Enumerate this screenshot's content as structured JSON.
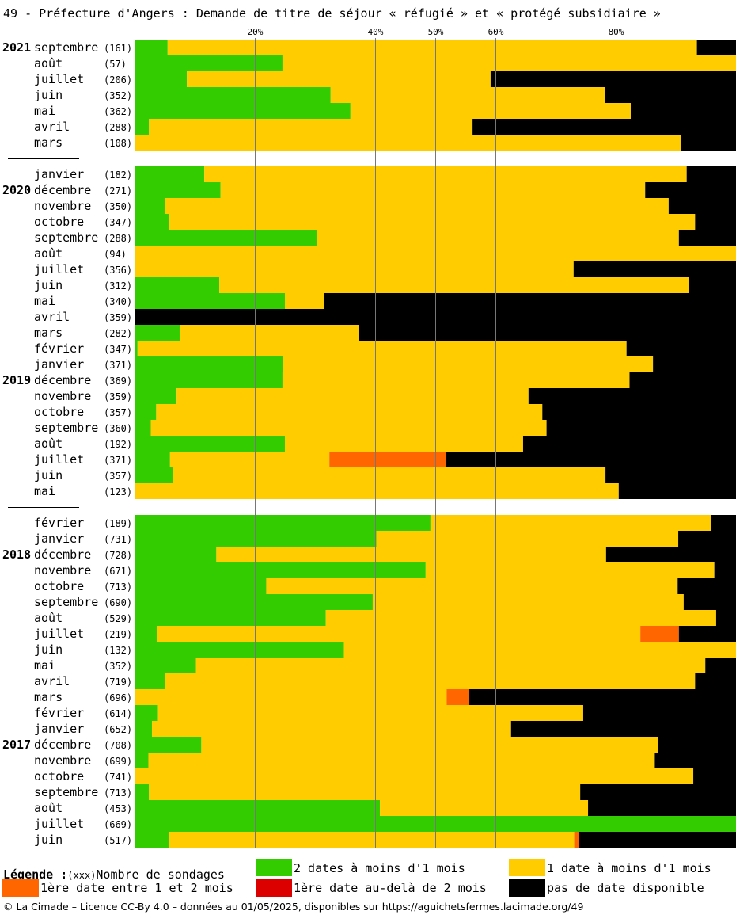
{
  "title": "49 - Préfecture d'Angers : Demande de titre de séjour « réfugié » et « protégé subsidiaire »",
  "legend": {
    "heading": "Légende :",
    "count_marker": "(xxx)",
    "count_label": "Nombre de sondages",
    "items": [
      {
        "key": "two_dates",
        "label": "2 dates à moins d'1 mois",
        "color": "#33cc00"
      },
      {
        "key": "one_date",
        "label": "1 date à moins d'1 mois",
        "color": "#ffcc00"
      },
      {
        "key": "first_1_2",
        "label": "1ère date entre 1 et 2 mois",
        "color": "#ff6600"
      },
      {
        "key": "first_over_2",
        "label": "1ère date au-delà de 2 mois",
        "color": "#dd0000"
      },
      {
        "key": "none",
        "label": "pas de date disponible",
        "color": "#000000"
      }
    ]
  },
  "footer": "© La Cimade – Licence CC-By 4.0 – données au 01/05/2025, disponibles sur https://aguichetsfermes.lacimade.org/49",
  "chart_data": {
    "type": "bar",
    "orientation": "horizontal",
    "stacked": true,
    "x_ticks": [
      20,
      40,
      50,
      60,
      80
    ],
    "x_tick_labels": [
      "20%",
      "40%",
      "50%",
      "60%",
      "80%"
    ],
    "xlim": [
      0,
      100
    ],
    "grid": true,
    "series_order": [
      "two_dates",
      "one_date",
      "first_1_2",
      "first_over_2",
      "none"
    ],
    "rows": [
      {
        "year": "2021",
        "month": "septembre",
        "count": "(161)",
        "values": [
          5.5,
          88.0,
          0,
          0,
          6.5
        ]
      },
      {
        "year": "",
        "month": "août",
        "count": "(57)",
        "values": [
          24.6,
          75.4,
          0,
          0,
          0
        ]
      },
      {
        "year": "",
        "month": "juillet",
        "count": "(206)",
        "values": [
          8.7,
          50.5,
          0,
          0,
          40.8
        ]
      },
      {
        "year": "",
        "month": "juin",
        "count": "(352)",
        "values": [
          32.6,
          45.6,
          0,
          0,
          21.8
        ]
      },
      {
        "year": "",
        "month": "mai",
        "count": "(362)",
        "values": [
          35.9,
          46.6,
          0,
          0,
          17.5
        ]
      },
      {
        "year": "",
        "month": "avril",
        "count": "(288)",
        "values": [
          2.4,
          53.8,
          0,
          0,
          43.8
        ]
      },
      {
        "year": "",
        "month": "mars",
        "count": "(108)",
        "values": [
          0,
          90.8,
          0,
          0,
          9.2
        ]
      },
      {
        "gap": true
      },
      {
        "year": "",
        "month": "janvier",
        "count": "(182)",
        "values": [
          11.6,
          80.2,
          0,
          0,
          8.2
        ]
      },
      {
        "year": "2020",
        "month": "décembre",
        "count": "(271)",
        "values": [
          14.3,
          70.6,
          0,
          0,
          15.1
        ]
      },
      {
        "year": "",
        "month": "novembre",
        "count": "(350)",
        "values": [
          5.1,
          83.7,
          0,
          0,
          11.2
        ]
      },
      {
        "year": "",
        "month": "octobre",
        "count": "(347)",
        "values": [
          5.8,
          87.4,
          0,
          0,
          6.8
        ]
      },
      {
        "year": "",
        "month": "septembre",
        "count": "(288)",
        "values": [
          30.3,
          60.2,
          0,
          0,
          9.5
        ]
      },
      {
        "year": "",
        "month": "août",
        "count": "(94)",
        "values": [
          0,
          100,
          0,
          0,
          0
        ]
      },
      {
        "year": "",
        "month": "juillet",
        "count": "(356)",
        "values": [
          0,
          73.0,
          0,
          0,
          27.0
        ]
      },
      {
        "year": "",
        "month": "juin",
        "count": "(312)",
        "values": [
          14.1,
          78.1,
          0,
          0,
          7.8
        ]
      },
      {
        "year": "",
        "month": "mai",
        "count": "(340)",
        "values": [
          25.0,
          6.5,
          0,
          0,
          68.5
        ]
      },
      {
        "year": "",
        "month": "avril",
        "count": "(359)",
        "values": [
          0,
          0,
          0,
          0,
          100
        ]
      },
      {
        "year": "",
        "month": "mars",
        "count": "(282)",
        "values": [
          7.5,
          29.8,
          0,
          0,
          62.7
        ]
      },
      {
        "year": "",
        "month": "février",
        "count": "(347)",
        "values": [
          0.5,
          81.3,
          0,
          0,
          18.2
        ]
      },
      {
        "year": "",
        "month": "janvier",
        "count": "(371)",
        "values": [
          24.7,
          61.5,
          0,
          0,
          13.8
        ]
      },
      {
        "year": "2019",
        "month": "décembre",
        "count": "(369)",
        "values": [
          24.6,
          57.7,
          0,
          0,
          17.7
        ]
      },
      {
        "year": "",
        "month": "novembre",
        "count": "(359)",
        "values": [
          7.0,
          58.5,
          0,
          0,
          34.5
        ]
      },
      {
        "year": "",
        "month": "octobre",
        "count": "(357)",
        "values": [
          3.6,
          64.2,
          0,
          0,
          32.2
        ]
      },
      {
        "year": "",
        "month": "septembre",
        "count": "(360)",
        "values": [
          2.7,
          65.8,
          0,
          0,
          31.5
        ]
      },
      {
        "year": "",
        "month": "août",
        "count": "(192)",
        "values": [
          25.0,
          39.6,
          0,
          0,
          35.4
        ]
      },
      {
        "year": "",
        "month": "juillet",
        "count": "(371)",
        "values": [
          5.9,
          26.5,
          19.4,
          0,
          48.2
        ]
      },
      {
        "year": "",
        "month": "juin",
        "count": "(357)",
        "values": [
          6.4,
          71.9,
          0,
          0,
          21.7
        ]
      },
      {
        "year": "",
        "month": "mai",
        "count": "(123)",
        "values": [
          0,
          80.5,
          0,
          0,
          19.5
        ]
      },
      {
        "gap": true
      },
      {
        "year": "",
        "month": "février",
        "count": "(189)",
        "values": [
          49.2,
          46.6,
          0,
          0,
          4.2
        ]
      },
      {
        "year": "",
        "month": "janvier",
        "count": "(731)",
        "values": [
          40.2,
          50.2,
          0,
          0,
          9.6
        ]
      },
      {
        "year": "2018",
        "month": "décembre",
        "count": "(728)",
        "values": [
          13.6,
          64.8,
          0,
          0,
          21.6
        ]
      },
      {
        "year": "",
        "month": "novembre",
        "count": "(671)",
        "values": [
          48.4,
          48.0,
          0,
          0,
          3.6
        ]
      },
      {
        "year": "",
        "month": "octobre",
        "count": "(713)",
        "values": [
          21.9,
          68.4,
          0,
          0,
          9.7
        ]
      },
      {
        "year": "",
        "month": "septembre",
        "count": "(690)",
        "values": [
          39.6,
          51.7,
          0,
          0,
          8.7
        ]
      },
      {
        "year": "",
        "month": "août",
        "count": "(529)",
        "values": [
          31.8,
          64.9,
          0,
          0,
          3.3
        ]
      },
      {
        "year": "",
        "month": "juillet",
        "count": "(219)",
        "values": [
          3.7,
          80.4,
          6.4,
          0,
          9.5
        ]
      },
      {
        "year": "",
        "month": "juin",
        "count": "(132)",
        "values": [
          34.8,
          65.2,
          0,
          0,
          0
        ]
      },
      {
        "year": "",
        "month": "mai",
        "count": "(352)",
        "values": [
          10.2,
          84.7,
          0,
          0,
          5.1
        ]
      },
      {
        "year": "",
        "month": "avril",
        "count": "(719)",
        "values": [
          5.0,
          88.2,
          0,
          0,
          6.8
        ]
      },
      {
        "year": "",
        "month": "mars",
        "count": "(696)",
        "values": [
          0,
          51.9,
          3.7,
          0,
          44.4
        ]
      },
      {
        "year": "",
        "month": "février",
        "count": "(614)",
        "values": [
          3.9,
          70.7,
          0,
          0,
          25.4
        ]
      },
      {
        "year": "",
        "month": "janvier",
        "count": "(652)",
        "values": [
          2.9,
          59.7,
          0,
          0,
          37.4
        ]
      },
      {
        "year": "2017",
        "month": "décembre",
        "count": "(708)",
        "values": [
          11.1,
          76.0,
          0,
          0,
          12.9
        ]
      },
      {
        "year": "",
        "month": "novembre",
        "count": "(699)",
        "values": [
          2.3,
          84.2,
          0,
          0,
          13.5
        ]
      },
      {
        "year": "",
        "month": "octobre",
        "count": "(741)",
        "values": [
          0,
          92.9,
          0,
          0,
          7.1
        ]
      },
      {
        "year": "",
        "month": "septembre",
        "count": "(713)",
        "values": [
          2.4,
          71.7,
          0,
          0,
          25.9
        ]
      },
      {
        "year": "",
        "month": "août",
        "count": "(453)",
        "values": [
          40.8,
          34.6,
          0,
          0,
          24.6
        ]
      },
      {
        "year": "",
        "month": "juillet",
        "count": "(669)",
        "values": [
          100,
          0,
          0,
          0,
          0
        ]
      },
      {
        "year": "",
        "month": "juin",
        "count": "(517)",
        "values": [
          5.8,
          67.3,
          0.8,
          0,
          26.1
        ]
      }
    ]
  }
}
